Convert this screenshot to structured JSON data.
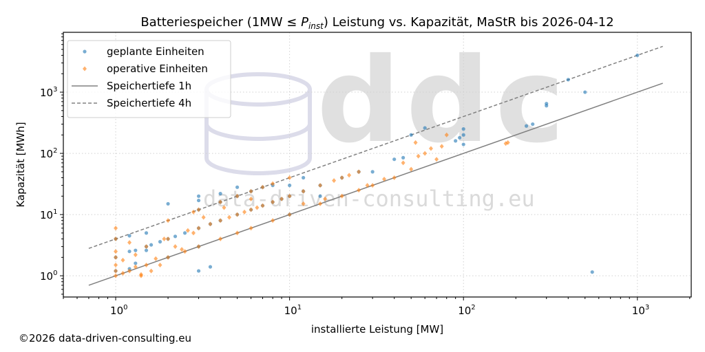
{
  "chart_data": {
    "type": "scatter",
    "title_prefix": "Batteriespeicher (1MW ≤ ",
    "title_var": "P",
    "title_sub": "inst",
    "title_suffix": ") Leistung vs. Kapazität, MaStR bis 2026-04-12",
    "xlabel": "installierte Leistung [MW]",
    "ylabel": "Kapazität [MWh]",
    "xscale": "log",
    "yscale": "log",
    "xlim": [
      0.5,
      2040
    ],
    "ylim": [
      0.45,
      9500
    ],
    "xticks": [
      {
        "value": 1,
        "base": "10",
        "exp": "0"
      },
      {
        "value": 10,
        "base": "10",
        "exp": "1"
      },
      {
        "value": 100,
        "base": "10",
        "exp": "2"
      },
      {
        "value": 1000,
        "base": "10",
        "exp": "3"
      }
    ],
    "yticks": [
      {
        "value": 1,
        "base": "10",
        "exp": "0"
      },
      {
        "value": 10,
        "base": "10",
        "exp": "1"
      },
      {
        "value": 100,
        "base": "10",
        "exp": "2"
      },
      {
        "value": 1000,
        "base": "10",
        "exp": "3"
      }
    ],
    "grid": true,
    "legend_position": "top-left",
    "colors": {
      "planned": "#1f77b4",
      "operative": "#ff7f0e",
      "line": "#808080"
    },
    "series": [
      {
        "name": "geplante Einheiten",
        "marker": "circle",
        "points": [
          [
            1000,
            4000
          ],
          [
            400,
            1600
          ],
          [
            500,
            1000
          ],
          [
            300,
            650
          ],
          [
            300,
            600
          ],
          [
            250,
            300
          ],
          [
            230,
            280
          ],
          [
            100,
            250
          ],
          [
            100,
            200
          ],
          [
            95,
            180
          ],
          [
            100,
            140
          ],
          [
            90,
            160
          ],
          [
            60,
            260
          ],
          [
            50,
            200
          ],
          [
            45,
            85
          ],
          [
            40,
            80
          ],
          [
            30,
            50
          ],
          [
            550,
            1.15
          ],
          [
            3,
            1.2
          ],
          [
            3.5,
            1.4
          ],
          [
            5,
            28
          ],
          [
            7,
            28
          ],
          [
            8,
            30
          ],
          [
            10,
            30
          ],
          [
            3,
            20
          ],
          [
            3,
            17
          ],
          [
            2,
            15
          ],
          [
            1.5,
            5
          ],
          [
            1,
            4
          ],
          [
            1.2,
            2.5
          ],
          [
            1.5,
            3
          ],
          [
            2,
            4
          ],
          [
            3,
            6
          ],
          [
            4,
            8
          ],
          [
            5,
            10
          ],
          [
            6,
            12
          ],
          [
            8,
            16
          ],
          [
            10,
            20
          ],
          [
            15,
            30
          ],
          [
            20,
            40
          ],
          [
            25,
            50
          ],
          [
            3,
            12
          ],
          [
            4,
            16
          ],
          [
            5,
            20
          ],
          [
            6,
            24
          ],
          [
            1,
            2
          ],
          [
            1.2,
            1.3
          ],
          [
            1.3,
            1.6
          ],
          [
            2,
            2
          ],
          [
            3,
            3
          ],
          [
            10,
            10
          ],
          [
            15,
            20
          ],
          [
            12,
            40
          ],
          [
            4,
            22
          ],
          [
            1,
            1.2
          ],
          [
            1.2,
            4.5
          ],
          [
            1.5,
            2.6
          ],
          [
            1.6,
            3.2
          ],
          [
            2.5,
            5
          ],
          [
            3.5,
            7
          ],
          [
            7,
            14
          ],
          [
            9,
            18
          ],
          [
            12,
            24
          ],
          [
            1.3,
            2.6
          ],
          [
            1.8,
            3.6
          ],
          [
            2.2,
            4.4
          ]
        ]
      },
      {
        "name": "operative Einheiten",
        "marker": "diamond",
        "points": [
          [
            1,
            1
          ],
          [
            1,
            1.5
          ],
          [
            1,
            2
          ],
          [
            1,
            6
          ],
          [
            1,
            4
          ],
          [
            1.2,
            1.2
          ],
          [
            1.5,
            1.5
          ],
          [
            2,
            2
          ],
          [
            2.5,
            2.5
          ],
          [
            3,
            3
          ],
          [
            4,
            4
          ],
          [
            5,
            5
          ],
          [
            6,
            6
          ],
          [
            8,
            8
          ],
          [
            10,
            10
          ],
          [
            15,
            15
          ],
          [
            20,
            20
          ],
          [
            25,
            25
          ],
          [
            1.5,
            3
          ],
          [
            2,
            4
          ],
          [
            3,
            6
          ],
          [
            4,
            8
          ],
          [
            5,
            10
          ],
          [
            6,
            12
          ],
          [
            8,
            16
          ],
          [
            10,
            20
          ],
          [
            12,
            24
          ],
          [
            15,
            30
          ],
          [
            20,
            40
          ],
          [
            25,
            50
          ],
          [
            2,
            8
          ],
          [
            3,
            12
          ],
          [
            4,
            16
          ],
          [
            5,
            20
          ],
          [
            6,
            24
          ],
          [
            7,
            28
          ],
          [
            8,
            32
          ],
          [
            10,
            40
          ],
          [
            1.4,
            1
          ],
          [
            1.6,
            1.2
          ],
          [
            1.8,
            1.5
          ],
          [
            2.2,
            3
          ],
          [
            2.8,
            5
          ],
          [
            3.5,
            7
          ],
          [
            4.5,
            9
          ],
          [
            6,
            18
          ],
          [
            7,
            14
          ],
          [
            9,
            18
          ],
          [
            12,
            15
          ],
          [
            18,
            36
          ],
          [
            30,
            30
          ],
          [
            35,
            38
          ],
          [
            50,
            55
          ],
          [
            55,
            90
          ],
          [
            60,
            100
          ],
          [
            65,
            120
          ],
          [
            70,
            80
          ],
          [
            75,
            130
          ],
          [
            80,
            200
          ],
          [
            53,
            150
          ],
          [
            180,
            150
          ],
          [
            175,
            145
          ],
          [
            45,
            70
          ],
          [
            40,
            40
          ],
          [
            28,
            30
          ],
          [
            1.2,
            3.5
          ],
          [
            1.3,
            2.2
          ],
          [
            2.6,
            5.5
          ],
          [
            3.2,
            9
          ],
          [
            6.5,
            13
          ],
          [
            1.1,
            1.8
          ],
          [
            1.7,
            1.9
          ],
          [
            2.4,
            2.7
          ],
          [
            1.4,
            1.05
          ],
          [
            1.9,
            4
          ],
          [
            1,
            1.2
          ],
          [
            1,
            2.5
          ],
          [
            1.1,
            1.1
          ],
          [
            1.3,
            1.4
          ],
          [
            2.8,
            11
          ],
          [
            4.2,
            13
          ],
          [
            5.5,
            11
          ],
          [
            16,
            18
          ],
          [
            22,
            44
          ]
        ]
      },
      {
        "name": "Speichertiefe 1h",
        "type": "line",
        "style": "solid",
        "x": [
          0.7,
          1400
        ],
        "y": [
          0.7,
          1400
        ]
      },
      {
        "name": "Speichertiefe 4h",
        "type": "line",
        "style": "dashed",
        "x": [
          0.7,
          1400
        ],
        "y": [
          2.8,
          5600
        ]
      }
    ]
  },
  "watermark": {
    "logo_text": "ddc",
    "url_text": "data-driven-consulting.eu"
  },
  "copyright": "©2026 data-driven-consulting.eu"
}
